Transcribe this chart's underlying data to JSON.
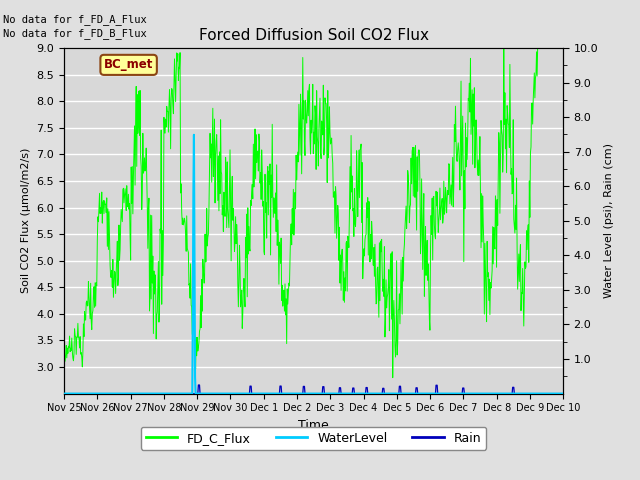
{
  "title": "Forced Diffusion Soil CO2 Flux",
  "xlabel": "Time",
  "ylabel_left": "Soil CO2 Flux (μmol/m2/s)",
  "ylabel_right": "Water Level (psi), Rain (cm)",
  "ylim_left": [
    2.5,
    9.0
  ],
  "ylim_right": [
    0.0,
    10.0
  ],
  "yticks_left": [
    3.0,
    3.5,
    4.0,
    4.5,
    5.0,
    5.5,
    6.0,
    6.5,
    7.0,
    7.5,
    8.0,
    8.5,
    9.0
  ],
  "yticks_right_major": [
    1.0,
    2.0,
    3.0,
    4.0,
    5.0,
    6.0,
    7.0,
    8.0,
    9.0,
    10.0
  ],
  "yticks_right_minor": [
    0.5,
    1.5,
    2.5,
    3.5,
    4.5,
    5.5,
    6.5,
    7.5,
    8.5,
    9.5
  ],
  "no_data_text1": "No data for f_FD_A_Flux",
  "no_data_text2": "No data for f_FD_B_Flux",
  "bc_met_label": "BC_met",
  "legend_labels": [
    "FD_C_Flux",
    "WaterLevel",
    "Rain"
  ],
  "flux_color": "#00FF00",
  "water_color": "#00CCFF",
  "rain_color": "#0000BB",
  "background_color": "#E0E0E0",
  "plot_bg_color": "#D8D8D8",
  "grid_color": "#FFFFFF",
  "xtick_labels": [
    "Nov 25",
    "Nov 26",
    "Nov 27",
    "Nov 28",
    "Nov 29",
    "Nov 30",
    "Dec 1",
    "Dec 2",
    "Dec 3",
    "Dec 4",
    "Dec 5",
    "Dec 6",
    "Dec 7",
    "Dec 8",
    "Dec 9",
    "Dec 10"
  ],
  "n_points": 900
}
